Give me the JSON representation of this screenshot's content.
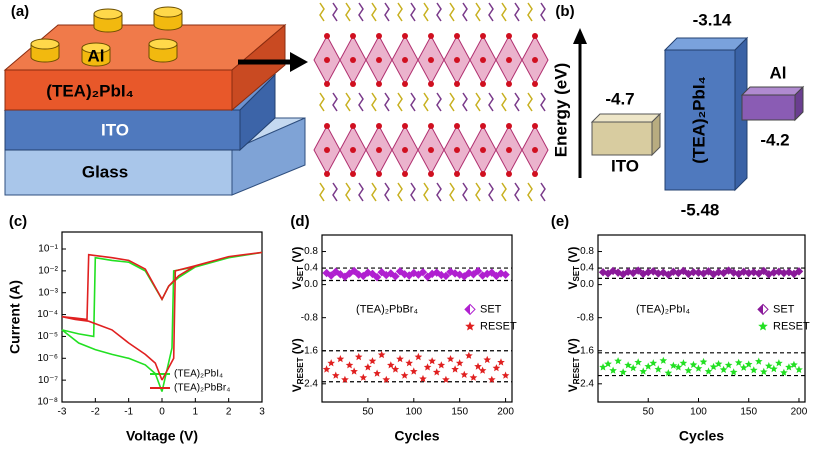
{
  "panel_a": {
    "label": "(a)",
    "electrode": "Al",
    "active_layer": "(TEA)₂PbI₄",
    "bottom_electrode": "ITO",
    "substrate": "Glass"
  },
  "panel_b": {
    "label": "(b)",
    "axis_label": "Energy (eV)",
    "ito": {
      "name": "ITO",
      "level": "-4.7"
    },
    "perovskite": {
      "name": "(TEA)₂PbI₄",
      "top": "-3.14",
      "bottom": "-5.48"
    },
    "al": {
      "name": "Al",
      "level": "-4.2"
    }
  },
  "chart_data": [
    {
      "type": "line",
      "panel": "(c)",
      "x_label": "Voltage (V)",
      "y_label": "Current (A)",
      "log_y": true,
      "xlim": [
        -3,
        3
      ],
      "xticks": [
        -3,
        -2,
        -1,
        0,
        1,
        2,
        3
      ],
      "ylim": [
        1e-08,
        0.6
      ],
      "yticks": [
        {
          "value": 1e-08,
          "label": "10⁻⁸"
        },
        {
          "value": 1e-07,
          "label": "10⁻⁷"
        },
        {
          "value": 1e-06,
          "label": "10⁻⁶"
        },
        {
          "value": 1e-05,
          "label": "10⁻⁵"
        },
        {
          "value": 0.0001,
          "label": "10⁻⁴"
        },
        {
          "value": 0.001,
          "label": "10⁻³"
        },
        {
          "value": 0.01,
          "label": "10⁻²"
        },
        {
          "value": 0.1,
          "label": "10⁻¹"
        }
      ],
      "series": [
        {
          "name": "(TEA)₂PbI₄",
          "color": "#22e022",
          "x": [
            0,
            0.3,
            0.35,
            1,
            2,
            3,
            2,
            1,
            0.5,
            0.2,
            0,
            -0.5,
            -1,
            -1.5,
            -2,
            -2.05,
            -2.5,
            -3,
            -2.5,
            -2,
            -1.5,
            -1,
            -0.5,
            -0.2,
            0
          ],
          "values": [
            3e-08,
            3e-06,
            0.01,
            0.015,
            0.04,
            0.07,
            0.04,
            0.015,
            0.005,
            0.002,
            0.0005,
            0.01,
            0.025,
            0.03,
            0.04,
            1e-05,
            1.3e-05,
            2e-05,
            5e-06,
            2.5e-06,
            1.5e-06,
            1e-06,
            5e-07,
            2e-07,
            3e-08
          ]
        },
        {
          "name": "(TEA)₂PbBr₄",
          "color": "#e02020",
          "x": [
            0,
            0.35,
            0.4,
            1,
            2,
            3,
            2,
            1,
            0.5,
            0.2,
            0,
            -0.5,
            -1,
            -1.5,
            -2,
            -2.2,
            -2.25,
            -2.6,
            -3,
            -2.6,
            -2.2,
            -1.5,
            -1,
            -0.5,
            -0.2,
            0
          ],
          "values": [
            1e-07,
            1e-06,
            0.01,
            0.017,
            0.045,
            0.07,
            0.045,
            0.017,
            0.006,
            0.002,
            0.0005,
            0.012,
            0.03,
            0.04,
            0.05,
            0.055,
            6e-05,
            7e-05,
            8e-05,
            6e-05,
            5e-05,
            2e-05,
            5e-06,
            1.5e-06,
            6e-07,
            1e-07
          ]
        }
      ]
    },
    {
      "type": "scatter",
      "panel": "(d)",
      "x_label": "Cycles",
      "y_labels": [
        {
          "main": "V",
          "sub": "SET",
          "tail": " (V)"
        },
        {
          "main": "V",
          "sub": "RESET",
          "tail": " (V)"
        }
      ],
      "annotation": "(TEA)₂PbBr₄",
      "xlim": [
        0,
        207
      ],
      "xticks": [
        50,
        100,
        150,
        200
      ],
      "ylim": [
        -2.84,
        1.2
      ],
      "yticks": [
        0.8,
        0.4,
        {
          "value": 0,
          "label": "0.0"
        },
        -0.8,
        -1.6,
        -2.4
      ],
      "reference_lines": [
        0.4,
        0.1,
        -1.6,
        -2.35
      ],
      "x": [
        5,
        10,
        15,
        20,
        25,
        30,
        35,
        40,
        45,
        50,
        55,
        60,
        65,
        70,
        75,
        80,
        85,
        90,
        95,
        100,
        105,
        110,
        115,
        120,
        125,
        130,
        135,
        140,
        145,
        150,
        155,
        160,
        165,
        170,
        175,
        180,
        185,
        190,
        195,
        200
      ],
      "series": [
        {
          "name": "SET",
          "color": "#b020d0",
          "marker": "half-diamond",
          "values": [
            0.28,
            0.22,
            0.31,
            0.25,
            0.19,
            0.27,
            0.33,
            0.24,
            0.21,
            0.29,
            0.26,
            0.18,
            0.3,
            0.23,
            0.27,
            0.2,
            0.32,
            0.25,
            0.22,
            0.28,
            0.24,
            0.3,
            0.19,
            0.26,
            0.29,
            0.23,
            0.21,
            0.31,
            0.27,
            0.24,
            0.2,
            0.28,
            0.25,
            0.33,
            0.22,
            0.26,
            0.29,
            0.21,
            0.27,
            0.24
          ]
        },
        {
          "name": "RESET",
          "color": "#e02020",
          "marker": "star",
          "values": [
            -2.05,
            -1.9,
            -2.2,
            -1.8,
            -2.3,
            -1.95,
            -2.1,
            -1.75,
            -2.25,
            -2.0,
            -1.85,
            -2.15,
            -1.7,
            -2.3,
            -1.95,
            -2.05,
            -1.8,
            -2.2,
            -1.9,
            -2.1,
            -1.75,
            -2.28,
            -2.0,
            -1.85,
            -2.12,
            -1.95,
            -2.3,
            -1.8,
            -2.05,
            -1.9,
            -2.18,
            -1.72,
            -2.25,
            -1.98,
            -2.08,
            -1.82,
            -2.3,
            -2.02,
            -1.88,
            -2.2
          ]
        }
      ]
    },
    {
      "type": "scatter",
      "panel": "(e)",
      "x_label": "Cycles",
      "y_labels": [
        {
          "main": "V",
          "sub": "SET",
          "tail": " (V)"
        },
        {
          "main": "V",
          "sub": "RESET",
          "tail": " (V)"
        }
      ],
      "annotation": "(TEA)₂PbI₄",
      "xlim": [
        0,
        206
      ],
      "xticks": [
        50,
        100,
        150,
        200
      ],
      "ylim": [
        -2.84,
        1.2
      ],
      "yticks": [
        0.8,
        0.4,
        {
          "value": 0,
          "label": "0.0"
        },
        -0.8,
        -1.6,
        -2.4
      ],
      "reference_lines": [
        0.4,
        0.15,
        -1.65,
        -2.2
      ],
      "x": [
        5,
        10,
        15,
        20,
        25,
        30,
        35,
        40,
        45,
        50,
        55,
        60,
        65,
        70,
        75,
        80,
        85,
        90,
        95,
        100,
        105,
        110,
        115,
        120,
        125,
        130,
        135,
        140,
        145,
        150,
        155,
        160,
        165,
        170,
        175,
        180,
        185,
        190,
        195,
        200
      ],
      "series": [
        {
          "name": "SET",
          "color": "#8a1a9a",
          "marker": "half-diamond",
          "values": [
            0.3,
            0.27,
            0.33,
            0.29,
            0.25,
            0.31,
            0.28,
            0.34,
            0.26,
            0.3,
            0.32,
            0.27,
            0.29,
            0.24,
            0.31,
            0.28,
            0.33,
            0.26,
            0.3,
            0.29,
            0.27,
            0.32,
            0.25,
            0.3,
            0.28,
            0.34,
            0.29,
            0.26,
            0.31,
            0.28,
            0.3,
            0.27,
            0.33,
            0.25,
            0.29,
            0.31,
            0.28,
            0.3,
            0.26,
            0.32
          ]
        },
        {
          "name": "RESET",
          "color": "#22e022",
          "marker": "star",
          "values": [
            -2.0,
            -1.92,
            -2.08,
            -1.85,
            -2.12,
            -1.95,
            -2.02,
            -1.88,
            -2.1,
            -1.98,
            -1.9,
            -2.05,
            -1.84,
            -2.14,
            -1.96,
            -2.0,
            -1.9,
            -2.08,
            -1.94,
            -2.03,
            -1.87,
            -2.1,
            -1.99,
            -1.92,
            -2.06,
            -1.95,
            -2.12,
            -1.89,
            -2.01,
            -1.93,
            -2.07,
            -1.86,
            -2.11,
            -1.97,
            -2.04,
            -1.9,
            -2.13,
            -2.0,
            -1.94,
            -2.06
          ]
        }
      ]
    }
  ]
}
